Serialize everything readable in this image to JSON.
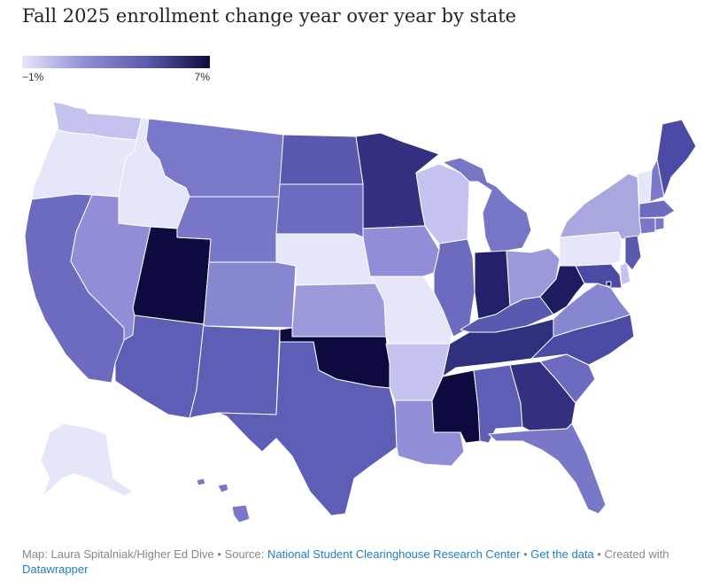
{
  "title": "Fall 2025 enrollment change year over year by state",
  "legend": {
    "min_label": "−1%",
    "max_label": "7%",
    "min_color": "#e6e6fa",
    "max_color": "#0c0a3e"
  },
  "colors": {
    "accent_link": "#1f7fbf",
    "footer_text": "#888888",
    "title_text": "#222222"
  },
  "footer": {
    "credit": "Map: Laura Spitalniak/Higher Ed Dive",
    "source_label": "Source:",
    "source_link": "National Student Clearinghouse Research Center",
    "data_link": "Get the data",
    "created_with": "Created with",
    "tool_link": "Datawrapper",
    "separator": " • "
  },
  "states": {
    "WA": "#c4c3ef",
    "OR": "#e6e6fa",
    "ID": "#e6e6fa",
    "CA": "#6c6bc0",
    "NV": "#8f8ed6",
    "UT": "#0c0a3e",
    "AZ": "#5f5eb6",
    "MT": "#7a79c9",
    "WY": "#7978c8",
    "CO": "#8786d0",
    "NM": "#5f5eb6",
    "ND": "#5a59b0",
    "SD": "#6c6bc0",
    "NE": "#e6e6fa",
    "KS": "#9a99da",
    "OK": "#0c0a3e",
    "TX": "#5f5eb6",
    "MN": "#32307f",
    "IA": "#8f8ed6",
    "MO": "#e6e6fa",
    "AR": "#c4c3ef",
    "LA": "#8f8ed6",
    "WI": "#c4c3ef",
    "IL": "#6c6bc0",
    "MI": "#7776c6",
    "IN": "#23216b",
    "OH": "#9a99da",
    "KY": "#5a59b0",
    "TN": "#30307e",
    "MS": "#0c0a3e",
    "AL": "#5f5eb6",
    "GA": "#32307f",
    "FL": "#7978c8",
    "SC": "#6c6bc0",
    "NC": "#4b4aa5",
    "VA": "#8786d0",
    "WV": "#1d1c60",
    "PA": "#e6e6fa",
    "NY": "#a8a7e0",
    "VT": "#e6e6fa",
    "NH": "#7b7aca",
    "ME": "#4b4aa5",
    "MA": "#6c6bc0",
    "CT": "#7978c8",
    "RI": "#7978c8",
    "NJ": "#5a59b0",
    "DE": "#c4c3ef",
    "MD": "#4b4aa5",
    "DC": "#1d1c60",
    "AK": "#e6e6fa",
    "HI": "#7978c8"
  }
}
